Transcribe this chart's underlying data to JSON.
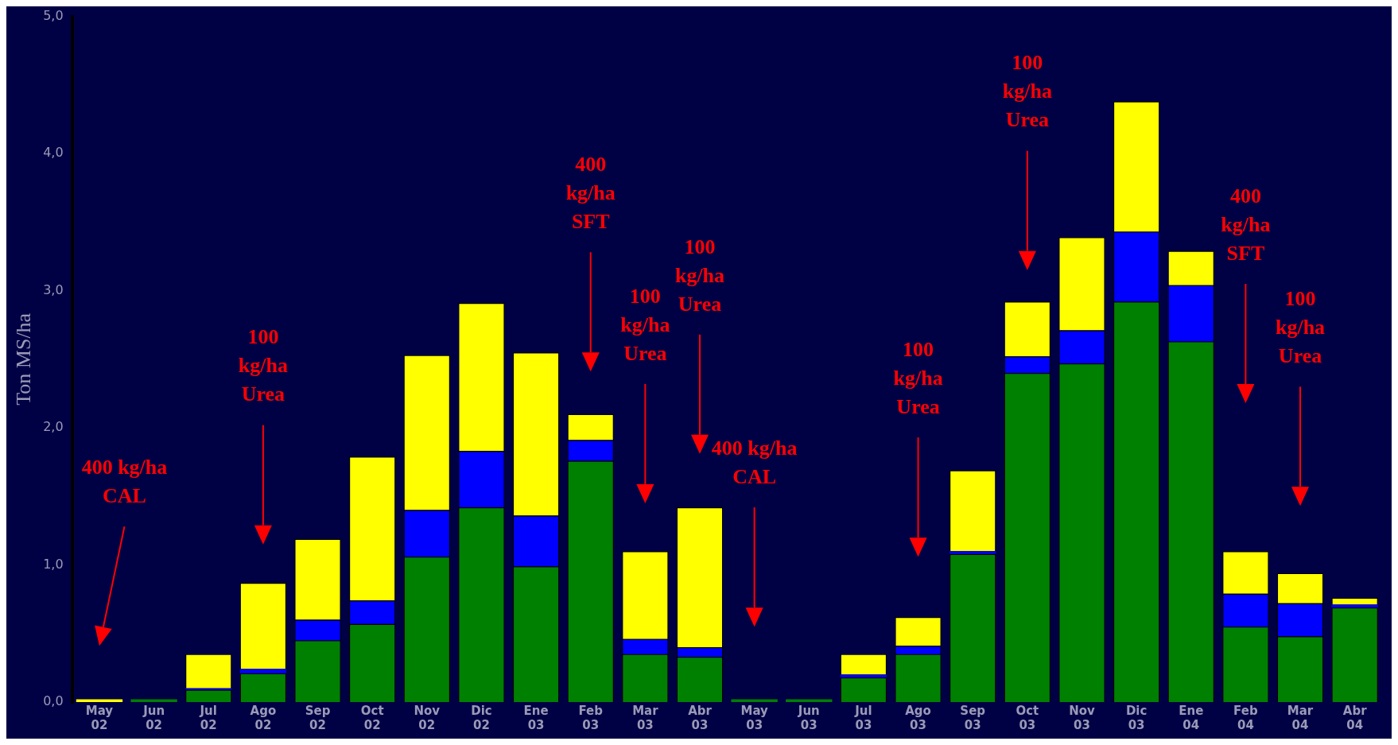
{
  "chart_data": {
    "type": "bar",
    "stacked": true,
    "ylabel": "Ton MS/ha",
    "categories": [
      "May 02",
      "Jun 02",
      "Jul 02",
      "Ago 02",
      "Sep 02",
      "Oct 02",
      "Nov 02",
      "Dic 02",
      "Ene 03",
      "Feb 03",
      "Mar 03",
      "Abr 03",
      "May 03",
      "Jun 03",
      "Jul 03",
      "Ago 03",
      "Sep 03",
      "Oct 03",
      "Nov 03",
      "Dic 03",
      "Ene 04",
      "Feb 04",
      "Mar 04",
      "Abr 04"
    ],
    "series": [
      {
        "color": "#008000",
        "values": [
          0,
          0.02,
          0.09,
          0.21,
          0.45,
          0.57,
          1.06,
          1.42,
          0.99,
          1.76,
          0.35,
          0.33,
          0.02,
          0.02,
          0.18,
          0.35,
          1.08,
          2.4,
          2.47,
          2.92,
          2.63,
          0.55,
          0.48,
          0.69
        ]
      },
      {
        "color": "#0000ff",
        "values": [
          0,
          0,
          0.01,
          0.03,
          0.15,
          0.17,
          0.34,
          0.41,
          0.37,
          0.15,
          0.11,
          0.07,
          0,
          0,
          0.02,
          0.06,
          0.02,
          0.12,
          0.24,
          0.51,
          0.41,
          0.24,
          0.24,
          0.02
        ]
      },
      {
        "color": "#ffff00",
        "values": [
          0.02,
          0,
          0.25,
          0.63,
          0.59,
          1.05,
          1.13,
          1.08,
          1.19,
          0.19,
          0.64,
          1.02,
          0,
          0,
          0.15,
          0.21,
          0.59,
          0.4,
          0.68,
          0.95,
          0.25,
          0.31,
          0.22,
          0.05
        ]
      }
    ],
    "ylim": [
      0,
      5
    ],
    "yticks": [
      {
        "value": 0,
        "label": "0,0"
      },
      {
        "value": 1,
        "label": "1,0"
      },
      {
        "value": 2,
        "label": "2,0"
      },
      {
        "value": 3,
        "label": "3,0"
      },
      {
        "value": 4,
        "label": "4,0"
      },
      {
        "value": 5,
        "label": "5,0"
      }
    ],
    "grid": false,
    "legend": false,
    "annotations": [
      "400 kg/ha\nCAL",
      "100\nkg/ha\nUrea",
      "400\nkg/ha\nSFT",
      "100\nkg/ha\nUrea",
      "100\nkg/ha\nUrea",
      "400 kg/ha\nCAL",
      "100\nkg/ha\nUrea",
      "100\nkg/ha\nUrea",
      "400\nkg/ha\nSFT",
      "100\nkg/ha\nUrea"
    ]
  }
}
